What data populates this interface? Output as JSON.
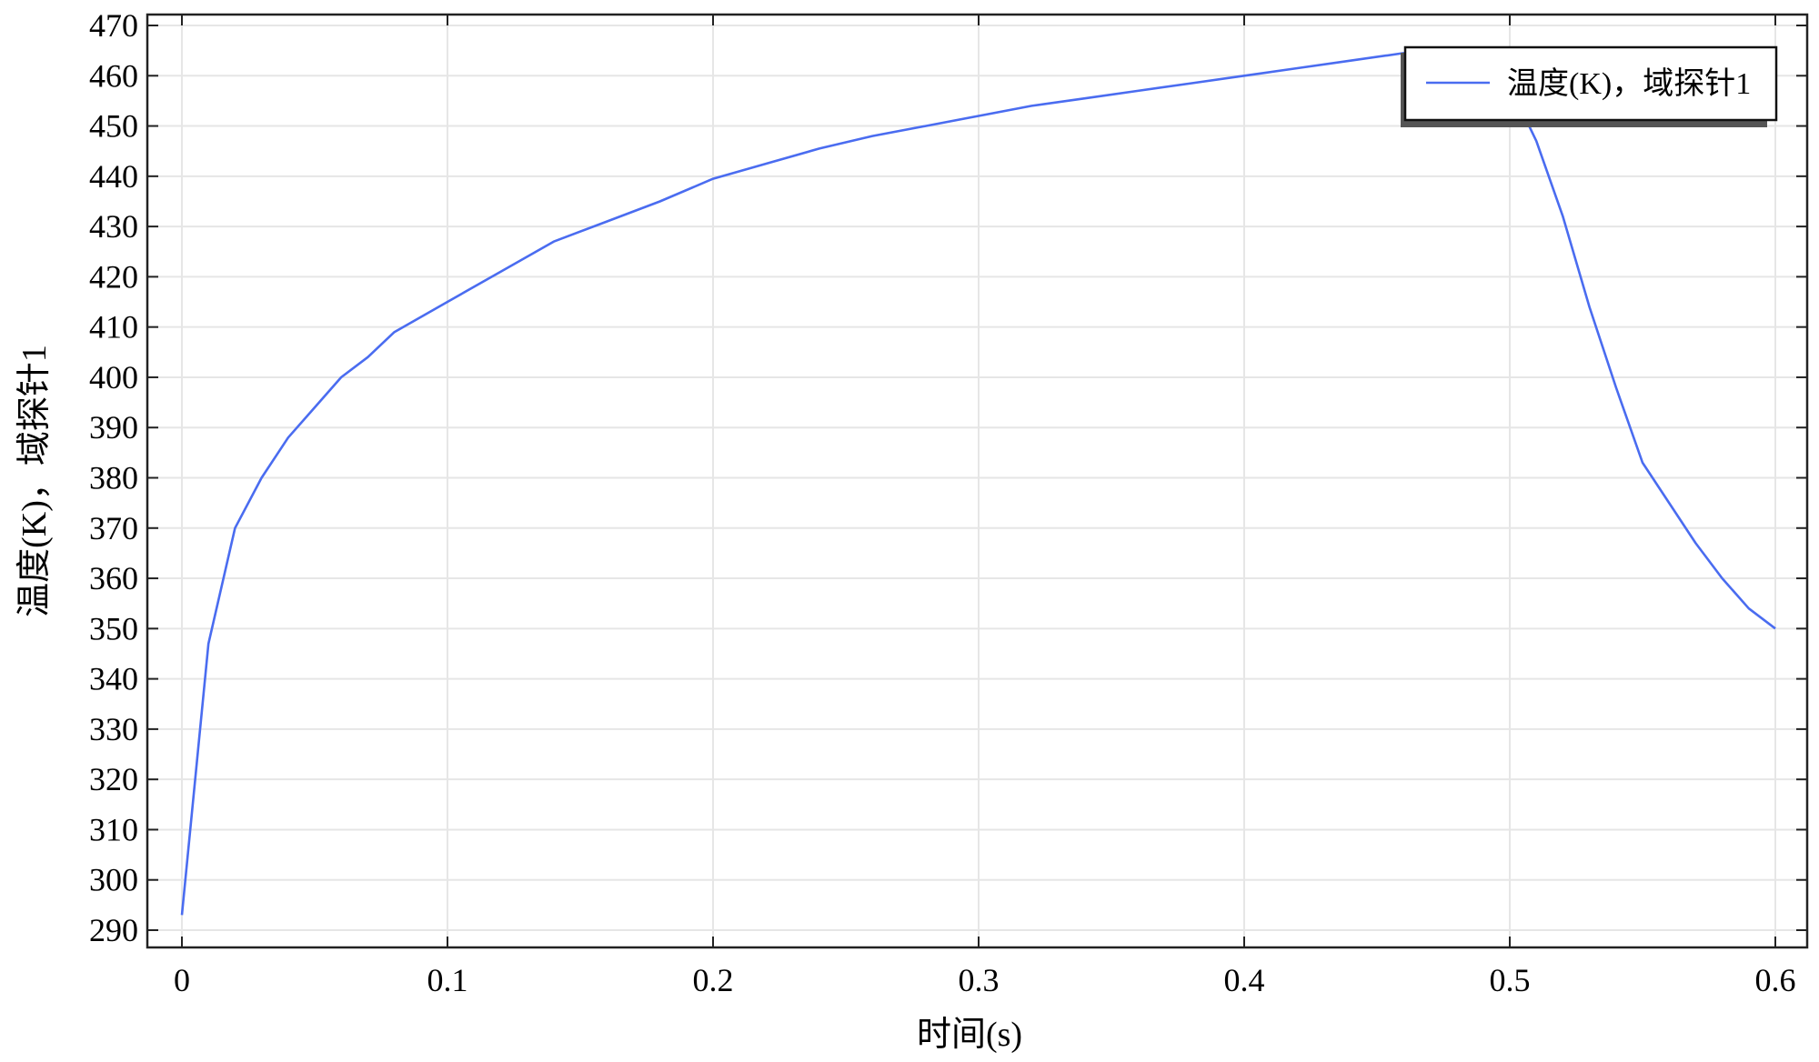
{
  "chart_data": {
    "type": "line",
    "xlabel": "时间(s)",
    "ylabel": "温度(K)，域探针1",
    "xlim": [
      0,
      0.6
    ],
    "ylim": [
      290,
      470
    ],
    "xticks": [
      0,
      0.1,
      0.2,
      0.3,
      0.4,
      0.5,
      0.6
    ],
    "xtick_labels": [
      "0",
      "0.1",
      "0.2",
      "0.3",
      "0.4",
      "0.5",
      "0.6"
    ],
    "yticks": [
      290,
      300,
      310,
      320,
      330,
      340,
      350,
      360,
      370,
      380,
      390,
      400,
      410,
      420,
      430,
      440,
      450,
      460,
      470
    ],
    "ytick_labels": [
      "290",
      "300",
      "310",
      "320",
      "330",
      "340",
      "350",
      "360",
      "370",
      "380",
      "390",
      "400",
      "410",
      "420",
      "430",
      "440",
      "450",
      "460",
      "470"
    ],
    "grid": true,
    "legend_position": "top-right",
    "series": [
      {
        "name": "温度(K)，域探针1",
        "color": "#4a6cf0",
        "x": [
          0,
          0.01,
          0.02,
          0.03,
          0.04,
          0.05,
          0.06,
          0.07,
          0.08,
          0.1,
          0.12,
          0.14,
          0.16,
          0.18,
          0.2,
          0.22,
          0.24,
          0.26,
          0.28,
          0.3,
          0.32,
          0.34,
          0.36,
          0.38,
          0.4,
          0.42,
          0.44,
          0.46,
          0.48,
          0.5,
          0.51,
          0.52,
          0.53,
          0.54,
          0.55,
          0.56,
          0.57,
          0.58,
          0.59,
          0.6
        ],
        "values": [
          293,
          347,
          370,
          380,
          388,
          394,
          400,
          404,
          409,
          415,
          421,
          427,
          431,
          435,
          439.5,
          442.5,
          445.5,
          448,
          450,
          452,
          454,
          455.5,
          457,
          458.5,
          460,
          461.5,
          463,
          464.5,
          463,
          458,
          447,
          432,
          414,
          398,
          383,
          375,
          367,
          360,
          354,
          350
        ]
      }
    ]
  }
}
